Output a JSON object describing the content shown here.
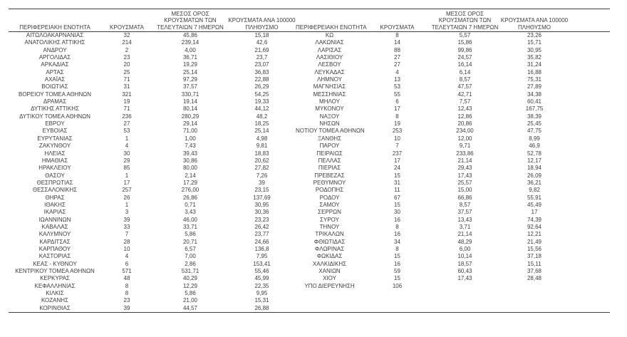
{
  "table": {
    "headers": {
      "region": "ΠΕΡΙΦΕΡΕΙΑΚΗ ΕΝΟΤΗΤΑ",
      "cases": "ΚΡΟΥΣΜΑΤΑ",
      "avg7_lines": [
        "ΜΕΣΟΣ ΟΡΟΣ",
        "ΚΡΟΥΣΜΑΤΩΝ ΤΩΝ",
        "ΤΕΛΕΥΤΑΙΩΝ 7 ΗΜΕΡΩΝ"
      ],
      "per100k_lines": [
        "ΚΡΟΥΣΜΑΤΑ ΑΝΑ 100000",
        "ΠΛΗΘΥΣΜΟ"
      ]
    },
    "left_rows": [
      [
        "ΑΙΤΩΛΟΑΚΑΡΝΑΝΙΑΣ",
        "32",
        "45,86",
        "15,18"
      ],
      [
        "ΑΝΑΤΟΛΙΚΗΣ ΑΤΤΙΚΗΣ",
        "214",
        "239,14",
        "42,6"
      ],
      [
        "ΑΝΔΡΟΥ",
        "2",
        "4,00",
        "21,69"
      ],
      [
        "ΑΡΓΟΛΙΔΑΣ",
        "23",
        "36,71",
        "23,7"
      ],
      [
        "ΑΡΚΑΔΙΑΣ",
        "20",
        "19,29",
        "23,07"
      ],
      [
        "ΑΡΤΑΣ",
        "25",
        "25,14",
        "36,83"
      ],
      [
        "ΑΧΑΪΑΣ",
        "71",
        "97,29",
        "22,88"
      ],
      [
        "ΒΟΙΩΤΙΑΣ",
        "31",
        "37,57",
        "26,29"
      ],
      [
        "ΒΟΡΕΙΟΥ ΤΟΜΕΑ ΑΘΗΝΩΝ",
        "321",
        "330,71",
        "54,25"
      ],
      [
        "ΔΡΑΜΑΣ",
        "19",
        "19,14",
        "19,33"
      ],
      [
        "ΔΥΤΙΚΗΣ ΑΤΤΙΚΗΣ",
        "71",
        "80,14",
        "44,12"
      ],
      [
        "ΔΥΤΙΚΟΥ ΤΟΜΕΑ ΑΘΗΝΩΝ",
        "236",
        "280,29",
        "48,2"
      ],
      [
        "ΕΒΡΟΥ",
        "27",
        "29,14",
        "18,25"
      ],
      [
        "ΕΥΒΟΙΑΣ",
        "53",
        "71,00",
        "25,14"
      ],
      [
        "ΕΥΡΥΤΑΝΙΑΣ",
        "1",
        "1,00",
        "4,98"
      ],
      [
        "ΖΑΚΥΝΘΟΥ",
        "4",
        "7,43",
        "9,81"
      ],
      [
        "ΗΛΕΙΑΣ",
        "30",
        "39,43",
        "18,83"
      ],
      [
        "ΗΜΑΘΙΑΣ",
        "29",
        "30,86",
        "20,62"
      ],
      [
        "ΗΡΑΚΛΕΙΟΥ",
        "85",
        "80,00",
        "27,82"
      ],
      [
        "ΘΑΣΟΥ",
        "1",
        "2,14",
        "7,26"
      ],
      [
        "ΘΕΣΠΡΩΤΙΑΣ",
        "17",
        "17,29",
        "39"
      ],
      [
        "ΘΕΣΣΑΛΟΝΙΚΗΣ",
        "257",
        "276,00",
        "23,15"
      ],
      [
        "ΘΗΡΑΣ",
        "26",
        "26,86",
        "137,69"
      ],
      [
        "ΙΘΑΚΗΣ",
        "1",
        "0,71",
        "30,95"
      ],
      [
        "ΙΚΑΡΙΑΣ",
        "3",
        "3,43",
        "30,36"
      ],
      [
        "ΙΩΑΝΝΙΝΩΝ",
        "39",
        "46,00",
        "23,23"
      ],
      [
        "ΚΑΒΑΛΑΣ",
        "33",
        "33,71",
        "26,42"
      ],
      [
        "ΚΑΛΥΜΝΟΥ",
        "7",
        "5,86",
        "23,77"
      ],
      [
        "ΚΑΡΔΙΤΣΑΣ",
        "28",
        "20,71",
        "24,66"
      ],
      [
        "ΚΑΡΠΑΘΟΥ",
        "10",
        "6,57",
        "136,8"
      ],
      [
        "ΚΑΣΤΟΡΙΑΣ",
        "4",
        "7,00",
        "7,95"
      ],
      [
        "ΚΕΑΣ - ΚΥΘΝΟΥ",
        "6",
        "2,86",
        "153,41"
      ],
      [
        "ΚΕΝΤΡΙΚΟΥ ΤΟΜΕΑ ΑΘΗΝΩΝ",
        "571",
        "531,71",
        "55,46"
      ],
      [
        "ΚΕΡΚΥΡΑΣ",
        "48",
        "40,29",
        "45,99"
      ],
      [
        "ΚΕΦΑΛΛΗΝΙΑΣ",
        "8",
        "12,29",
        "22,35"
      ],
      [
        "ΚΙΛΚΙΣ",
        "8",
        "5,86",
        "9,95"
      ],
      [
        "ΚΟΖΑΝΗΣ",
        "23",
        "21,00",
        "15,31"
      ],
      [
        "ΚΟΡΙΝΘΙΑΣ",
        "39",
        "44,57",
        "26,88"
      ]
    ],
    "right_rows": [
      [
        "ΚΩ",
        "8",
        "5,57",
        "23,26"
      ],
      [
        "ΛΑΚΩΝΙΑΣ",
        "14",
        "15,86",
        "15,71"
      ],
      [
        "ΛΑΡΙΣΑΣ",
        "88",
        "99,86",
        "30,95"
      ],
      [
        "ΛΑΣΙΘΙΟΥ",
        "27",
        "24,57",
        "35,82"
      ],
      [
        "ΛΕΣΒΟΥ",
        "27",
        "16,14",
        "31,24"
      ],
      [
        "ΛΕΥΚΑΔΑΣ",
        "4",
        "6,14",
        "16,88"
      ],
      [
        "ΛΗΜΝΟΥ",
        "13",
        "8,57",
        "75,31"
      ],
      [
        "ΜΑΓΝΗΣΙΑΣ",
        "53",
        "47,57",
        "27,89"
      ],
      [
        "ΜΕΣΣΗΝΙΑΣ",
        "55",
        "42,71",
        "34,38"
      ],
      [
        "ΜΗΛΟΥ",
        "6",
        "7,57",
        "60,41"
      ],
      [
        "ΜΥΚΟΝΟΥ",
        "17",
        "12,43",
        "167,75"
      ],
      [
        "ΝΑΞΟΥ",
        "8",
        "12,86",
        "38,39"
      ],
      [
        "ΝΗΣΩΝ",
        "19",
        "20,86",
        "25,45"
      ],
      [
        "ΝΟΤΙΟΥ ΤΟΜΕΑ ΑΘΗΝΩΝ",
        "253",
        "234,00",
        "47,75"
      ],
      [
        "ΞΑΝΘΗΣ",
        "10",
        "12,00",
        "8,99"
      ],
      [
        "ΠΑΡΟΥ",
        "7",
        "9,71",
        "46,9"
      ],
      [
        "ΠΕΙΡΑΙΩΣ",
        "237",
        "233,86",
        "52,78"
      ],
      [
        "ΠΕΛΛΑΣ",
        "17",
        "21,14",
        "12,17"
      ],
      [
        "ΠΙΕΡΙΑΣ",
        "24",
        "29,43",
        "18,94"
      ],
      [
        "ΠΡΕΒΕΖΑΣ",
        "15",
        "17,43",
        "26,09"
      ],
      [
        "ΡΕΘΥΜΝΟΥ",
        "31",
        "25,57",
        "36,21"
      ],
      [
        "ΡΟΔΟΠΗΣ",
        "11",
        "15,00",
        "9,82"
      ],
      [
        "ΡΟΔΟΥ",
        "67",
        "66,86",
        "55,91"
      ],
      [
        "ΣΑΜΟΥ",
        "15",
        "8,57",
        "45,49"
      ],
      [
        "ΣΕΡΡΩΝ",
        "30",
        "37,57",
        "17"
      ],
      [
        "ΣΥΡΟΥ",
        "16",
        "13,43",
        "74,39"
      ],
      [
        "ΤΗΝΟΥ",
        "8",
        "3,71",
        "92,64"
      ],
      [
        "ΤΡΙΚΑΛΩΝ",
        "16",
        "21,14",
        "12,21"
      ],
      [
        "ΦΘΙΩΤΙΔΑΣ",
        "34",
        "48,29",
        "21,49"
      ],
      [
        "ΦΛΩΡΙΝΑΣ",
        "8",
        "6,00",
        "15,56"
      ],
      [
        "ΦΩΚΙΔΑΣ",
        "15",
        "10,14",
        "37,18"
      ],
      [
        "ΧΑΛΚΙΔΙΚΗΣ",
        "16",
        "18,57",
        "15,11"
      ],
      [
        "ΧΑΝΙΩΝ",
        "59",
        "60,43",
        "37,68"
      ],
      [
        "ΧΙΟΥ",
        "15",
        "17,43",
        "28,48"
      ],
      [
        "ΥΠΟ ΔΙΕΡΕΥΝΗΣΗ",
        "106",
        "",
        ""
      ]
    ]
  }
}
